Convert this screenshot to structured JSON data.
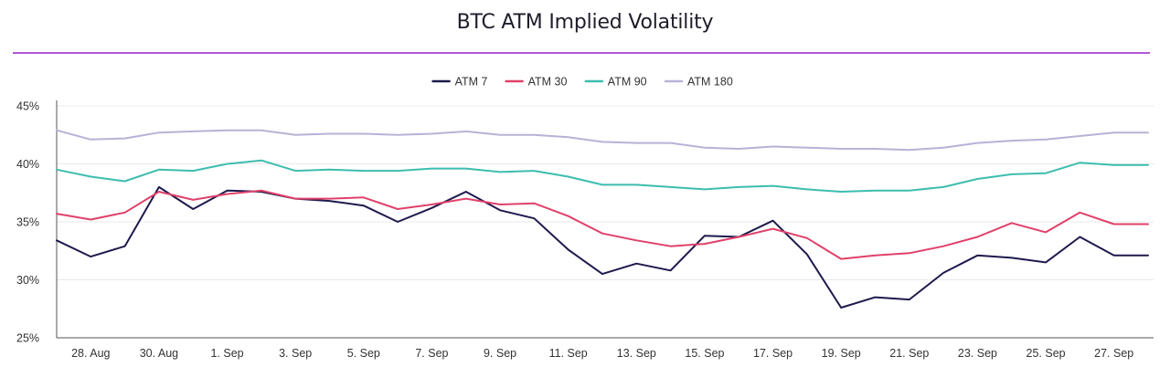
{
  "chart_data": {
    "type": "line",
    "title": "BTC ATM Implied Volatility",
    "title_rule_color": "#b455d9",
    "xlabel": "",
    "ylabel": "",
    "ylim": [
      25,
      45
    ],
    "yticks": [
      "25%",
      "30%",
      "35%",
      "40%",
      "45%"
    ],
    "ytick_values": [
      25,
      30,
      35,
      40,
      45
    ],
    "grid": true,
    "legend_position": "top-center",
    "x": [
      "27. Aug",
      "28. Aug",
      "29. Aug",
      "30. Aug",
      "31. Aug",
      "1. Sep",
      "2. Sep",
      "3. Sep",
      "4. Sep",
      "5. Sep",
      "6. Sep",
      "7. Sep",
      "8. Sep",
      "9. Sep",
      "10. Sep",
      "11. Sep",
      "12. Sep",
      "13. Sep",
      "14. Sep",
      "15. Sep",
      "16. Sep",
      "17. Sep",
      "18. Sep",
      "19. Sep",
      "20. Sep",
      "21. Sep",
      "22. Sep",
      "23. Sep",
      "24. Sep",
      "25. Sep",
      "26. Sep",
      "27. Sep",
      "28. Sep"
    ],
    "xtick_labels": [
      "28. Aug",
      "30. Aug",
      "1. Sep",
      "3. Sep",
      "5. Sep",
      "7. Sep",
      "9. Sep",
      "11. Sep",
      "13. Sep",
      "15. Sep",
      "17. Sep",
      "19. Sep",
      "21. Sep",
      "23. Sep",
      "25. Sep",
      "27. Sep"
    ],
    "series": [
      {
        "name": "ATM 7",
        "color": "#1e1a4d",
        "values": [
          33.4,
          32.0,
          32.9,
          38.0,
          36.1,
          37.7,
          37.6,
          37.0,
          36.8,
          36.4,
          35.0,
          36.2,
          37.6,
          36.0,
          35.3,
          32.6,
          30.5,
          31.4,
          30.8,
          33.8,
          33.7,
          35.1,
          32.2,
          27.6,
          28.5,
          28.3,
          30.6,
          32.1,
          31.9,
          31.5,
          33.7,
          32.1,
          32.1
        ]
      },
      {
        "name": "ATM 30",
        "color": "#e0416a",
        "values": [
          35.7,
          35.2,
          35.8,
          37.6,
          36.9,
          37.4,
          37.7,
          37.0,
          37.0,
          37.1,
          36.1,
          36.5,
          37.0,
          36.5,
          36.6,
          35.5,
          34.0,
          33.4,
          32.9,
          33.1,
          33.7,
          34.4,
          33.6,
          31.8,
          32.1,
          32.3,
          32.9,
          33.7,
          34.9,
          34.1,
          35.8,
          34.8,
          34.8
        ]
      },
      {
        "name": "ATM 90",
        "color": "#3dbdae",
        "values": [
          39.5,
          38.9,
          38.5,
          39.5,
          39.4,
          40.0,
          40.3,
          39.4,
          39.5,
          39.4,
          39.4,
          39.6,
          39.6,
          39.3,
          39.4,
          38.9,
          38.2,
          38.2,
          38.0,
          37.8,
          38.0,
          38.1,
          37.8,
          37.6,
          37.7,
          37.7,
          38.0,
          38.7,
          39.1,
          39.2,
          40.1,
          39.9,
          39.9
        ]
      },
      {
        "name": "ATM 180",
        "color": "#b8b2d6",
        "values": [
          42.9,
          42.1,
          42.2,
          42.7,
          42.8,
          42.9,
          42.9,
          42.5,
          42.6,
          42.6,
          42.5,
          42.6,
          42.8,
          42.5,
          42.5,
          42.3,
          41.9,
          41.8,
          41.8,
          41.4,
          41.3,
          41.5,
          41.4,
          41.3,
          41.3,
          41.2,
          41.4,
          41.8,
          42.0,
          42.1,
          42.4,
          42.7,
          42.7
        ]
      }
    ]
  }
}
